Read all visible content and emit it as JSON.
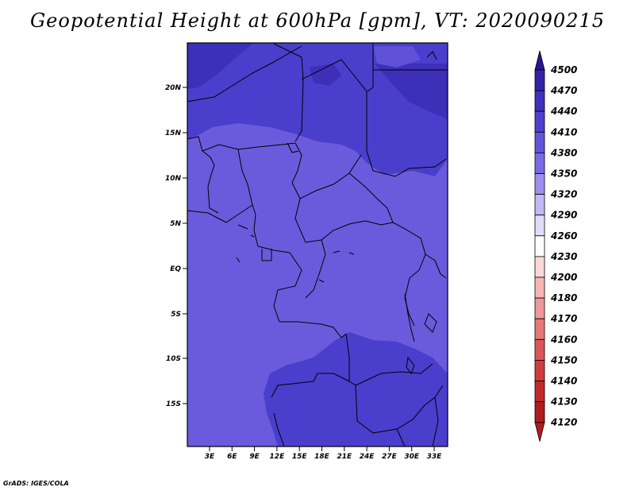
{
  "title": "Geopotential Height at 600hPa [gpm], VT: 2020090215",
  "credit": "GrADS: IGES/COLA",
  "map": {
    "lat_labels": [
      "20N",
      "15N",
      "10N",
      "5N",
      "EQ",
      "5S",
      "10S",
      "15S"
    ],
    "lon_labels": [
      "3E",
      "6E",
      "9E",
      "12E",
      "15E",
      "18E",
      "21E",
      "24E",
      "27E",
      "30E",
      "33E"
    ],
    "field_colors": {
      "dark": "#3c2fb8",
      "mid": "#4a3ecc",
      "base": "#6a5bdc",
      "light": "#7566e0"
    }
  },
  "colorbar": {
    "labels": [
      "4500",
      "4470",
      "4440",
      "4410",
      "4380",
      "4350",
      "4320",
      "4290",
      "4260",
      "4230",
      "4200",
      "4180",
      "4170",
      "4160",
      "4150",
      "4140",
      "4130",
      "4120"
    ],
    "colors": [
      "#2a1590",
      "#3422a8",
      "#3f30c0",
      "#5040d0",
      "#6454dc",
      "#7a6ae6",
      "#9e90ee",
      "#c2b8f4",
      "#e2dcfa",
      "#ffffff",
      "#fbd8d8",
      "#f6b6b6",
      "#ee9898",
      "#e67878",
      "#dd5656",
      "#d23c3c",
      "#c22a2a",
      "#b01c1c"
    ]
  }
}
